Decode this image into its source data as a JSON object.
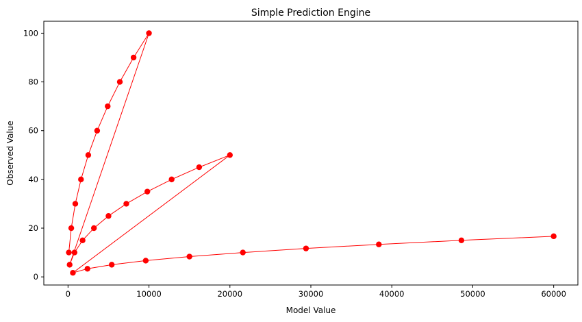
{
  "chart_data": {
    "type": "line",
    "title": "Simple Prediction Engine",
    "xlabel": "Model Value",
    "ylabel": "Observed Value",
    "xlim": [
      -2990,
      62990
    ],
    "ylim": [
      -3.33,
      104.9
    ],
    "xticks": [
      0,
      10000,
      20000,
      30000,
      40000,
      50000,
      60000
    ],
    "xtick_labels": [
      "0",
      "10000",
      "20000",
      "30000",
      "40000",
      "50000",
      "60000"
    ],
    "yticks": [
      0,
      20,
      40,
      60,
      80,
      100
    ],
    "ytick_labels": [
      "0",
      "20",
      "40",
      "60",
      "80",
      "100"
    ],
    "grid": false,
    "legend": "none",
    "series": [
      {
        "marker": "circle",
        "color": "#ff0000",
        "points": [
          [
            100,
            10
          ],
          [
            400,
            20
          ],
          [
            900,
            30
          ],
          [
            1600,
            40
          ],
          [
            2500,
            50
          ],
          [
            3600,
            60
          ],
          [
            4900,
            70
          ],
          [
            6400,
            80
          ],
          [
            8100,
            90
          ],
          [
            10000,
            100
          ],
          [
            200,
            5
          ],
          [
            800,
            10
          ],
          [
            1800,
            15
          ],
          [
            3200,
            20
          ],
          [
            5000,
            25
          ],
          [
            7200,
            30
          ],
          [
            9800,
            35
          ],
          [
            12800,
            40
          ],
          [
            16200,
            45
          ],
          [
            20000,
            50
          ],
          [
            600,
            1.67
          ],
          [
            2400,
            3.33
          ],
          [
            5400,
            5
          ],
          [
            9600,
            6.67
          ],
          [
            15000,
            8.33
          ],
          [
            21600,
            10
          ],
          [
            29400,
            11.67
          ],
          [
            38400,
            13.33
          ],
          [
            48600,
            15
          ],
          [
            60000,
            16.67
          ]
        ]
      }
    ]
  }
}
